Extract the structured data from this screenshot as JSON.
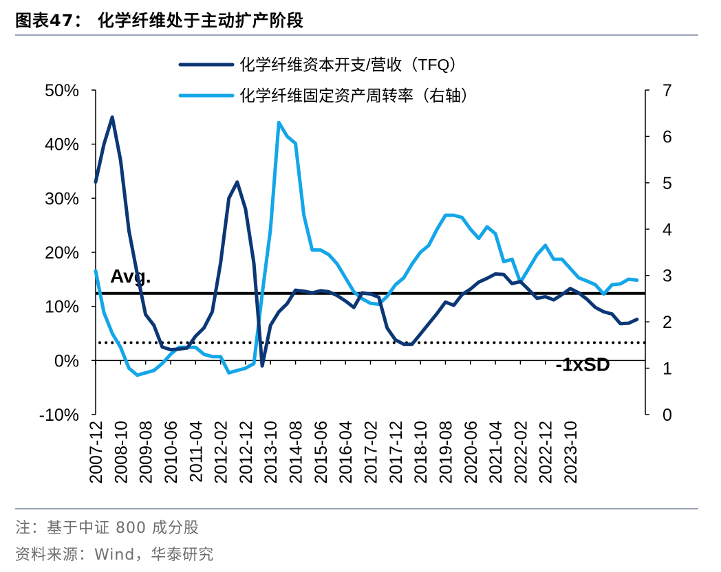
{
  "figure": {
    "title": "图表47：  化学纤维处于主动扩产阶段",
    "note": "注：基于中证 800 成分股",
    "source": "资料来源：Wind，华泰研究"
  },
  "colors": {
    "capex": "#0c3775",
    "turnover": "#13a6e8",
    "reference": "#000000",
    "rule": "#9aa3b5"
  },
  "chart_data": {
    "type": "line",
    "legend_position": "top-center",
    "grid": false,
    "x_tick_labels": [
      "2007-12",
      "2008-10",
      "2009-08",
      "2010-06",
      "2011-04",
      "2012-02",
      "2012-12",
      "2013-10",
      "2014-08",
      "2015-06",
      "2016-04",
      "2017-02",
      "2017-12",
      "2018-10",
      "2019-08",
      "2020-06",
      "2021-04",
      "2022-02",
      "2022-12",
      "2023-10"
    ],
    "x_range": [
      0,
      66
    ],
    "x_tick_step": 3,
    "y_left": {
      "range": [
        -10,
        50
      ],
      "ticks": [
        -10,
        0,
        10,
        20,
        30,
        40,
        50
      ],
      "tick_labels": [
        "-10%",
        "0%",
        "10%",
        "20%",
        "30%",
        "40%",
        "50%"
      ]
    },
    "y_right": {
      "range": [
        0,
        7
      ],
      "ticks": [
        0,
        1,
        2,
        3,
        4,
        5,
        6,
        7
      ],
      "tick_labels": [
        "0",
        "1",
        "2",
        "3",
        "4",
        "5",
        "6",
        "7"
      ]
    },
    "series": [
      {
        "name": "化学纤维资本开支/营收（TFQ）",
        "axis": "left",
        "color": "#0c3775",
        "values": [
          33,
          40,
          45,
          37,
          24,
          16,
          8.5,
          6.5,
          2.5,
          2,
          2.1,
          2.3,
          4.5,
          6,
          9,
          18,
          30,
          33,
          28,
          18,
          -1,
          6.5,
          9,
          10.5,
          13,
          12.8,
          12.5,
          12.9,
          12.7,
          12,
          11,
          9.8,
          12.5,
          12.3,
          11.7,
          6,
          3.8,
          3,
          3,
          4.9,
          6.8,
          8.7,
          10.8,
          10.2,
          12.2,
          13.2,
          14.5,
          15.2,
          16,
          15.9,
          14.2,
          14.6,
          13.1,
          11.5,
          11.8,
          11.2,
          12.2,
          13.3,
          12.5,
          11.3,
          9.8,
          9,
          8.6,
          6.8,
          6.9,
          7.6
        ]
      },
      {
        "name": "化学纤维固定资产周转率（右轴）",
        "axis": "right",
        "color": "#13a6e8",
        "values": [
          3.1,
          2.2,
          1.75,
          1.45,
          1.0,
          0.85,
          0.9,
          0.95,
          1.1,
          1.3,
          1.45,
          1.45,
          1.45,
          1.3,
          1.25,
          1.25,
          0.9,
          0.95,
          1.0,
          1.1,
          2.6,
          4.0,
          6.3,
          6.0,
          5.85,
          4.3,
          3.55,
          3.55,
          3.45,
          3.25,
          2.95,
          2.65,
          2.5,
          2.4,
          2.38,
          2.55,
          2.8,
          2.95,
          3.25,
          3.5,
          3.65,
          4.0,
          4.3,
          4.3,
          4.25,
          4.0,
          3.8,
          4.05,
          3.9,
          3.3,
          3.35,
          2.85,
          3.15,
          3.45,
          3.65,
          3.35,
          3.35,
          3.15,
          2.95,
          2.88,
          2.8,
          2.6,
          2.8,
          2.82,
          2.92,
          2.9
        ]
      }
    ],
    "reference_lines": [
      {
        "label": "Avg.",
        "axis": "left",
        "value": 12.4,
        "style": "solid"
      },
      {
        "label": "-1xSD",
        "axis": "left",
        "value": 3.3,
        "style": "dotted"
      }
    ]
  }
}
